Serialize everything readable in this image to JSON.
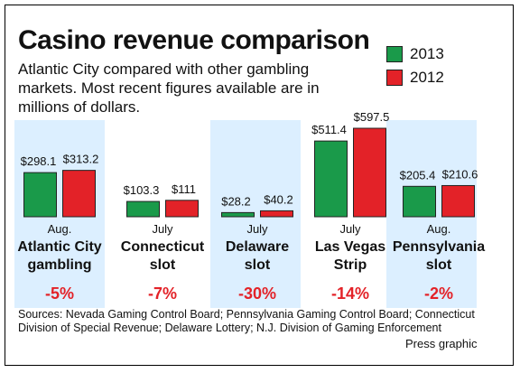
{
  "header": {
    "title": "Casino revenue comparison",
    "subtitle": "Atlantic City compared with other gambling markets. Most recent figures available are in millions of dollars."
  },
  "legend": [
    {
      "label": "2013",
      "color": "#1a9a4a"
    },
    {
      "label": "2012",
      "color": "#e32228"
    }
  ],
  "chart_data": {
    "type": "bar",
    "title": "Casino revenue comparison",
    "unit": "millions of dollars",
    "categories": [
      "Atlantic City gambling",
      "Connecticut slot",
      "Delaware slot",
      "Las Vegas Strip",
      "Pennsylvania slot"
    ],
    "series": [
      {
        "name": "2013",
        "values": [
          298.1,
          103.3,
          28.2,
          511.4,
          205.4
        ]
      },
      {
        "name": "2012",
        "values": [
          313.2,
          111,
          40.2,
          597.5,
          210.6
        ]
      }
    ],
    "groups": [
      {
        "month": "Aug.",
        "line1": "Atlantic City",
        "line2": "gambling",
        "change": "-5%",
        "label2013": "$298.1",
        "label2012": "$313.2",
        "v2013": 298.1,
        "v2012": 313.2
      },
      {
        "month": "July",
        "line1": "Connecticut",
        "line2": "slot",
        "change": "-7%",
        "label2013": "$103.3",
        "label2012": "$111",
        "v2013": 103.3,
        "v2012": 111
      },
      {
        "month": "July",
        "line1": "Delaware",
        "line2": "slot",
        "change": "-30%",
        "label2013": "$28.2",
        "label2012": "$40.2",
        "v2013": 28.2,
        "v2012": 40.2
      },
      {
        "month": "July",
        "line1": "Las Vegas",
        "line2": "Strip",
        "change": "-14%",
        "label2013": "$511.4",
        "label2012": "$597.5",
        "v2013": 511.4,
        "v2012": 597.5
      },
      {
        "month": "Aug.",
        "line1": "Pennsylvania",
        "line2": "slot",
        "change": "-2%",
        "label2013": "$205.4",
        "label2012": "$210.6",
        "v2013": 205.4,
        "v2012": 210.6
      }
    ],
    "colors": {
      "2013": "#1a9a4a",
      "2012": "#e32228",
      "change": "#e32228",
      "panel_shade": "#dcefff"
    }
  },
  "footer": {
    "sources": "Sources: Nevada Gaming Control Board; Pennsylvania Gaming Control Board; Connecticut Division of Special Revenue; Delaware Lottery; N.J. Division of Gaming Enforcement",
    "credit": "Press graphic"
  }
}
